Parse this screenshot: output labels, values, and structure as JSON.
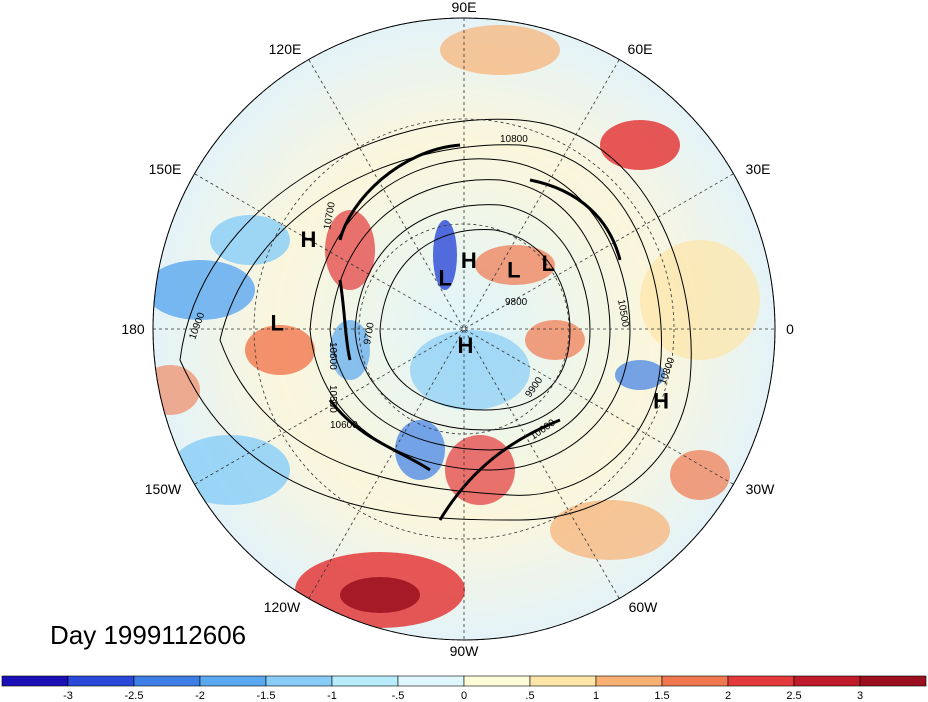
{
  "title": "Day 1999112606",
  "longitude_labels": [
    "90E",
    "60E",
    "30E",
    "0",
    "30W",
    "60W",
    "90W",
    "120W",
    "150W",
    "180",
    "150E",
    "120E"
  ],
  "pressure_centers": [
    {
      "label": "H",
      "lon": 150,
      "lat": 30
    },
    {
      "label": "L",
      "lon": 38,
      "lat": 52
    },
    {
      "label": "H",
      "lon": 86,
      "lat": 65
    },
    {
      "label": "L",
      "lon": 110,
      "lat": 70
    },
    {
      "label": "L",
      "lon": 50,
      "lat": 62
    },
    {
      "label": "L",
      "lon": 178,
      "lat": 28
    },
    {
      "label": "H",
      "lon": -85,
      "lat": 84
    },
    {
      "label": "H",
      "lon": -20,
      "lat": 22
    }
  ],
  "contour_labels": [
    "10800",
    "10700",
    "10900",
    "10600",
    "9700",
    "10500",
    "10600",
    "9800",
    "9900",
    "10600",
    "10500",
    "10800"
  ],
  "colorbar": {
    "ticks": [
      "-3",
      "-2.5",
      "-2",
      "-1.5",
      "-1",
      "-.5",
      "0",
      ".5",
      "1",
      "1.5",
      "2",
      "2.5",
      "3"
    ],
    "colors": [
      "#1a0fb4",
      "#2b49d8",
      "#3d7fe6",
      "#5aa8f0",
      "#87cdf7",
      "#b7ecfb",
      "#e0f8fd",
      "#fefbd8",
      "#fde6a6",
      "#f8b173",
      "#f0784e",
      "#e3393a",
      "#c01b2b",
      "#9b0f20"
    ]
  }
}
